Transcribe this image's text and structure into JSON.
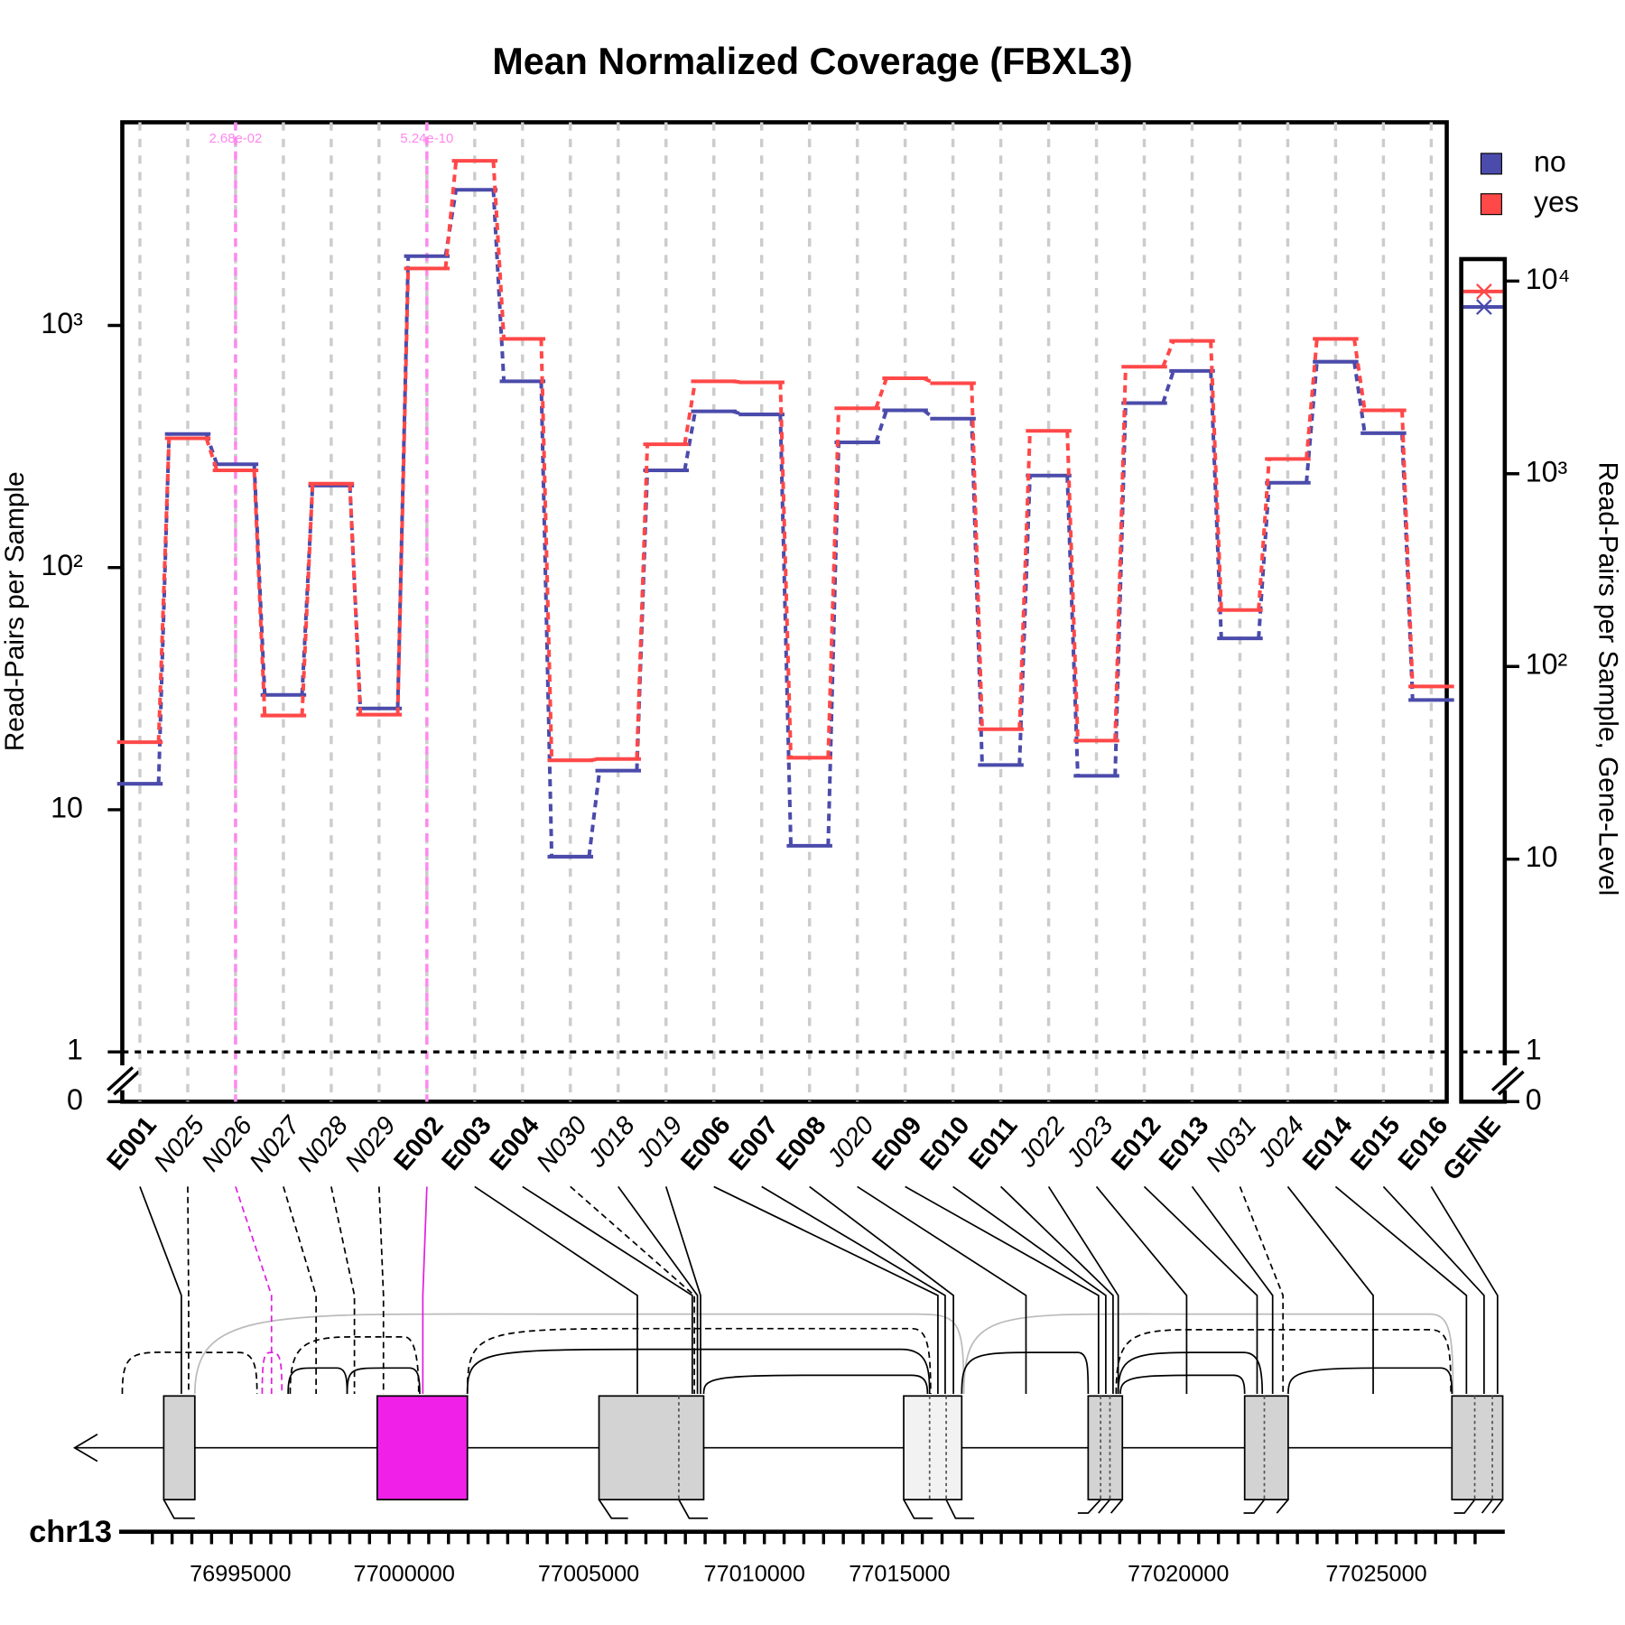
{
  "chart_data": {
    "type": "step",
    "title": "Mean Normalized Coverage (FBXL3)",
    "y_label": "Read-Pairs per Sample",
    "y2_label": "Read-Pairs per Sample, Gene-Level",
    "log_scale": true,
    "grid": true,
    "legend": "top-right",
    "categories": [
      "E001",
      "N025",
      "N026",
      "N027",
      "N028",
      "N029",
      "E002",
      "E003",
      "E004",
      "N030",
      "J018",
      "J019",
      "E006",
      "E007",
      "E008",
      "J020",
      "E009",
      "E010",
      "E011",
      "J022",
      "J023",
      "E012",
      "E013",
      "N031",
      "J024",
      "E014",
      "E015",
      "E016"
    ],
    "gene_category": "GENE",
    "series": [
      {
        "name": "no",
        "color": "#4b4bab",
        "values": [
          12.8,
          356,
          267,
          29.8,
          218,
          26.2,
          1932,
          3630,
          588,
          6.4,
          14.5,
          252,
          442,
          429,
          7.1,
          329,
          446,
          412,
          15.3,
          240,
          13.8,
          478,
          649,
          51,
          224,
          708,
          359,
          28.4
        ],
        "gene_value": 7340
      },
      {
        "name": "yes",
        "color": "#ff4848",
        "values": [
          19.0,
          342,
          252,
          24.5,
          222,
          24.7,
          1718,
          4785,
          880,
          16.0,
          16.2,
          323,
          588,
          582,
          16.4,
          455,
          605,
          577,
          21.5,
          367,
          19.3,
          675,
          863,
          66.8,
          281,
          880,
          446,
          32.3
        ],
        "gene_value": 8830
      }
    ],
    "ylim": [
      1,
      6900
    ],
    "yticks": [
      0,
      1,
      10,
      {
        "value": 100,
        "label": "10²"
      },
      {
        "value": 1000,
        "label": "10³"
      }
    ],
    "y2lim": [
      1,
      13000
    ],
    "y2ticks": [
      0,
      1,
      10,
      {
        "value": 100,
        "label": "10²"
      },
      {
        "value": 1000,
        "label": "10³"
      },
      {
        "value": 10000,
        "label": "10⁴"
      }
    ],
    "annotations": [
      {
        "category": "N026",
        "label": "2.68e-02",
        "color": "#ff88ee"
      },
      {
        "category": "E002",
        "label": "5.24e-10",
        "color": "#ff88ee"
      }
    ],
    "genome_axis": {
      "label": "chr13",
      "ticks": [
        76995000,
        77000000,
        77005000,
        77010000,
        77015000,
        77020000,
        77025000
      ]
    }
  }
}
